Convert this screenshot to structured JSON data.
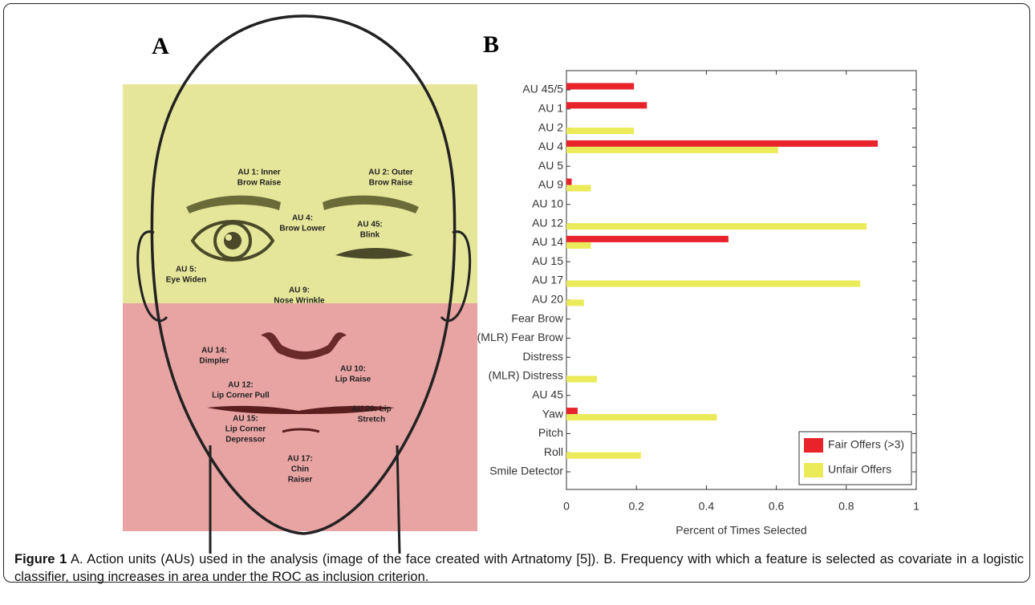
{
  "panel_a": {
    "letter": "A",
    "labels": [
      {
        "lines": [
          "AU 1: Inner",
          "Brow Raise"
        ]
      },
      {
        "lines": [
          "AU 2: Outer",
          "Brow Raise"
        ]
      },
      {
        "lines": [
          "AU 4:",
          "Brow Lower"
        ]
      },
      {
        "lines": [
          "AU 45:",
          "Blink"
        ]
      },
      {
        "lines": [
          "AU 5:",
          "Eye Widen"
        ]
      },
      {
        "lines": [
          "AU 9:",
          "Nose Wrinkle"
        ]
      },
      {
        "lines": [
          "AU 14:",
          "Dimpler"
        ]
      },
      {
        "lines": [
          "AU 10:",
          "Lip Raise"
        ]
      },
      {
        "lines": [
          "AU 12:",
          "Lip Corner Pull"
        ]
      },
      {
        "lines": [
          "AU 20: Lip",
          "Stretch"
        ]
      },
      {
        "lines": [
          "AU 15:",
          "Lip Corner",
          "Depressor"
        ]
      },
      {
        "lines": [
          "AU 17:",
          "Chin",
          "Raiser"
        ]
      }
    ]
  },
  "chart_data": {
    "type": "barh",
    "panel_letter": "B",
    "xlabel": "Percent of Times Selected",
    "categories": [
      "AU 45/5",
      "AU 1",
      "AU 2",
      "AU 4",
      "AU 5",
      "AU 9",
      "AU 10",
      "AU 12",
      "AU 14",
      "AU 15",
      "AU 17",
      "AU 20",
      "Fear Brow",
      "(MLR) Fear Brow",
      "Distress",
      "(MLR) Distress",
      "AU 45",
      "Yaw",
      "Pitch",
      "Roll",
      "Smile Detector"
    ],
    "series": [
      {
        "name": "Fair Offers (>3)",
        "color": "#e8232b",
        "values": [
          0.193,
          0.23,
          0,
          0.89,
          0,
          0.015,
          0,
          0,
          0.463,
          0,
          0,
          0,
          0,
          0,
          0,
          0,
          0,
          0.032,
          0,
          0,
          0
        ]
      },
      {
        "name": "Unfair Offers",
        "color": "#ebeb5a",
        "values": [
          0,
          0,
          0.193,
          0.605,
          0,
          0.07,
          0,
          0.858,
          0.07,
          0,
          0.84,
          0.05,
          0,
          0,
          0,
          0.087,
          0,
          0.43,
          0,
          0.213,
          0
        ]
      }
    ],
    "xlim": [
      0,
      1
    ],
    "xticks": [
      0,
      0.2,
      0.4,
      0.6,
      0.8,
      1
    ],
    "legend": "lower right"
  },
  "caption": {
    "label": "Figure 1",
    "text": "A. Action units (AUs) used in the analysis (image of the face created with Artnatomy [5]). B. Frequency with which a feature is selected as covariate in a logistic classifier, using increases in area under the ROC as inclusion criterion."
  }
}
